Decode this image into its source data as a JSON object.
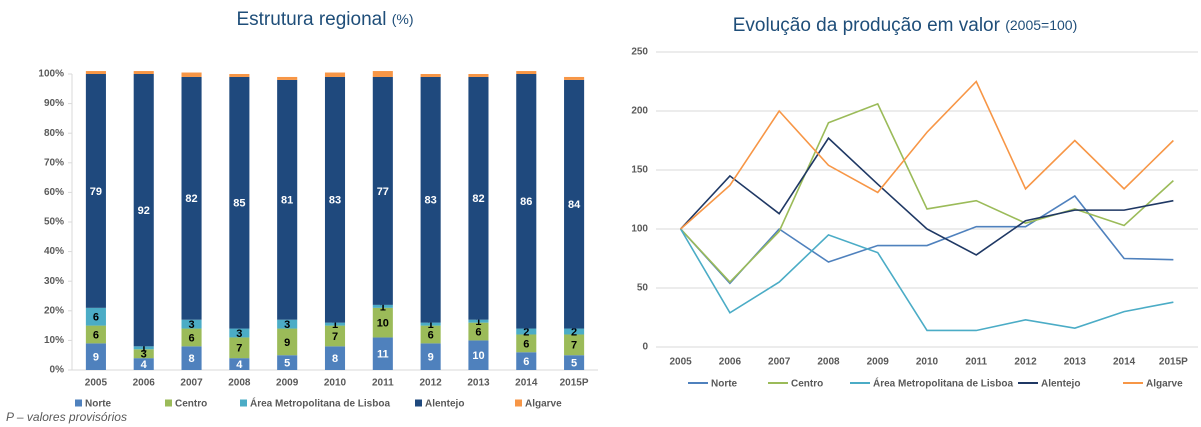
{
  "chart_data": [
    {
      "type": "bar",
      "stacked": true,
      "title": "Estrutura regional",
      "title_note": "(%)",
      "categories": [
        "2005",
        "2006",
        "2007",
        "2008",
        "2009",
        "2010",
        "2011",
        "2012",
        "2013",
        "2014",
        "2015P"
      ],
      "series": [
        {
          "name": "Norte",
          "color": "#4f81bd",
          "label_color": "#ffffff",
          "show_labels": true,
          "values": [
            9,
            4,
            8,
            4,
            5,
            8,
            11,
            9,
            10,
            6,
            5
          ]
        },
        {
          "name": "Centro",
          "color": "#9bbb59",
          "label_color": "#000000",
          "show_labels": true,
          "values": [
            6,
            3,
            6,
            7,
            9,
            7,
            10,
            6,
            6,
            6,
            7
          ]
        },
        {
          "name": "Área Metropolitana de Lisboa",
          "color": "#4bacc6",
          "label_color": "#000000",
          "show_labels": true,
          "values": [
            6,
            1,
            3,
            3,
            3,
            1,
            1,
            1,
            1,
            2,
            2
          ]
        },
        {
          "name": "Alentejo",
          "color": "#1f497d",
          "label_color": "#ffffff",
          "show_labels": true,
          "values": [
            79,
            92,
            82,
            85,
            81,
            83,
            77,
            83,
            82,
            86,
            84
          ]
        },
        {
          "name": "Algarve",
          "color": "#f79646",
          "label_color": "#000000",
          "show_labels": false,
          "values": [
            1,
            1,
            1.5,
            1,
            1,
            1.5,
            2,
            1,
            1,
            1,
            1
          ]
        }
      ],
      "ylim": [
        0,
        100
      ],
      "yticks": [
        {
          "value": 0,
          "label": "0%"
        },
        {
          "value": 10,
          "label": "10%"
        },
        {
          "value": 20,
          "label": "20%"
        },
        {
          "value": 30,
          "label": "30%"
        },
        {
          "value": 40,
          "label": "40%"
        },
        {
          "value": 50,
          "label": "50%"
        },
        {
          "value": 60,
          "label": "60%"
        },
        {
          "value": 70,
          "label": "70%"
        },
        {
          "value": 80,
          "label": "80%"
        },
        {
          "value": 90,
          "label": "90%"
        },
        {
          "value": 100,
          "label": "100%"
        }
      ],
      "grid": false,
      "legend": "bottom"
    },
    {
      "type": "line",
      "title": "Evolução da produção em valor",
      "title_note": "(2005=100)",
      "categories": [
        "2005",
        "2006",
        "2007",
        "2008",
        "2009",
        "2010",
        "2011",
        "2012",
        "2013",
        "2014",
        "2015P"
      ],
      "series": [
        {
          "name": "Norte",
          "color": "#4f81bd",
          "values": [
            100,
            54,
            100,
            72,
            86,
            86,
            102,
            102,
            128,
            75,
            74
          ]
        },
        {
          "name": "Centro",
          "color": "#9bbb59",
          "values": [
            100,
            55,
            98,
            190,
            206,
            117,
            124,
            105,
            117,
            103,
            141
          ]
        },
        {
          "name": "Área Metropolitana de Lisboa",
          "color": "#4bacc6",
          "values": [
            100,
            29,
            55,
            95,
            80,
            14,
            14,
            23,
            16,
            30,
            38
          ]
        },
        {
          "name": "Alentejo",
          "color": "#1f3864",
          "values": [
            100,
            145,
            113,
            177,
            138,
            100,
            78,
            107,
            116,
            116,
            124
          ]
        },
        {
          "name": "Algarve",
          "color": "#f79646",
          "values": [
            100,
            137,
            200,
            154,
            131,
            182,
            225,
            134,
            175,
            134,
            175
          ]
        }
      ],
      "ylim": [
        0,
        250
      ],
      "yticks": [
        0,
        50,
        100,
        150,
        200,
        250
      ],
      "grid": true,
      "legend": "bottom"
    }
  ],
  "footnote": "P – valores provisórios"
}
